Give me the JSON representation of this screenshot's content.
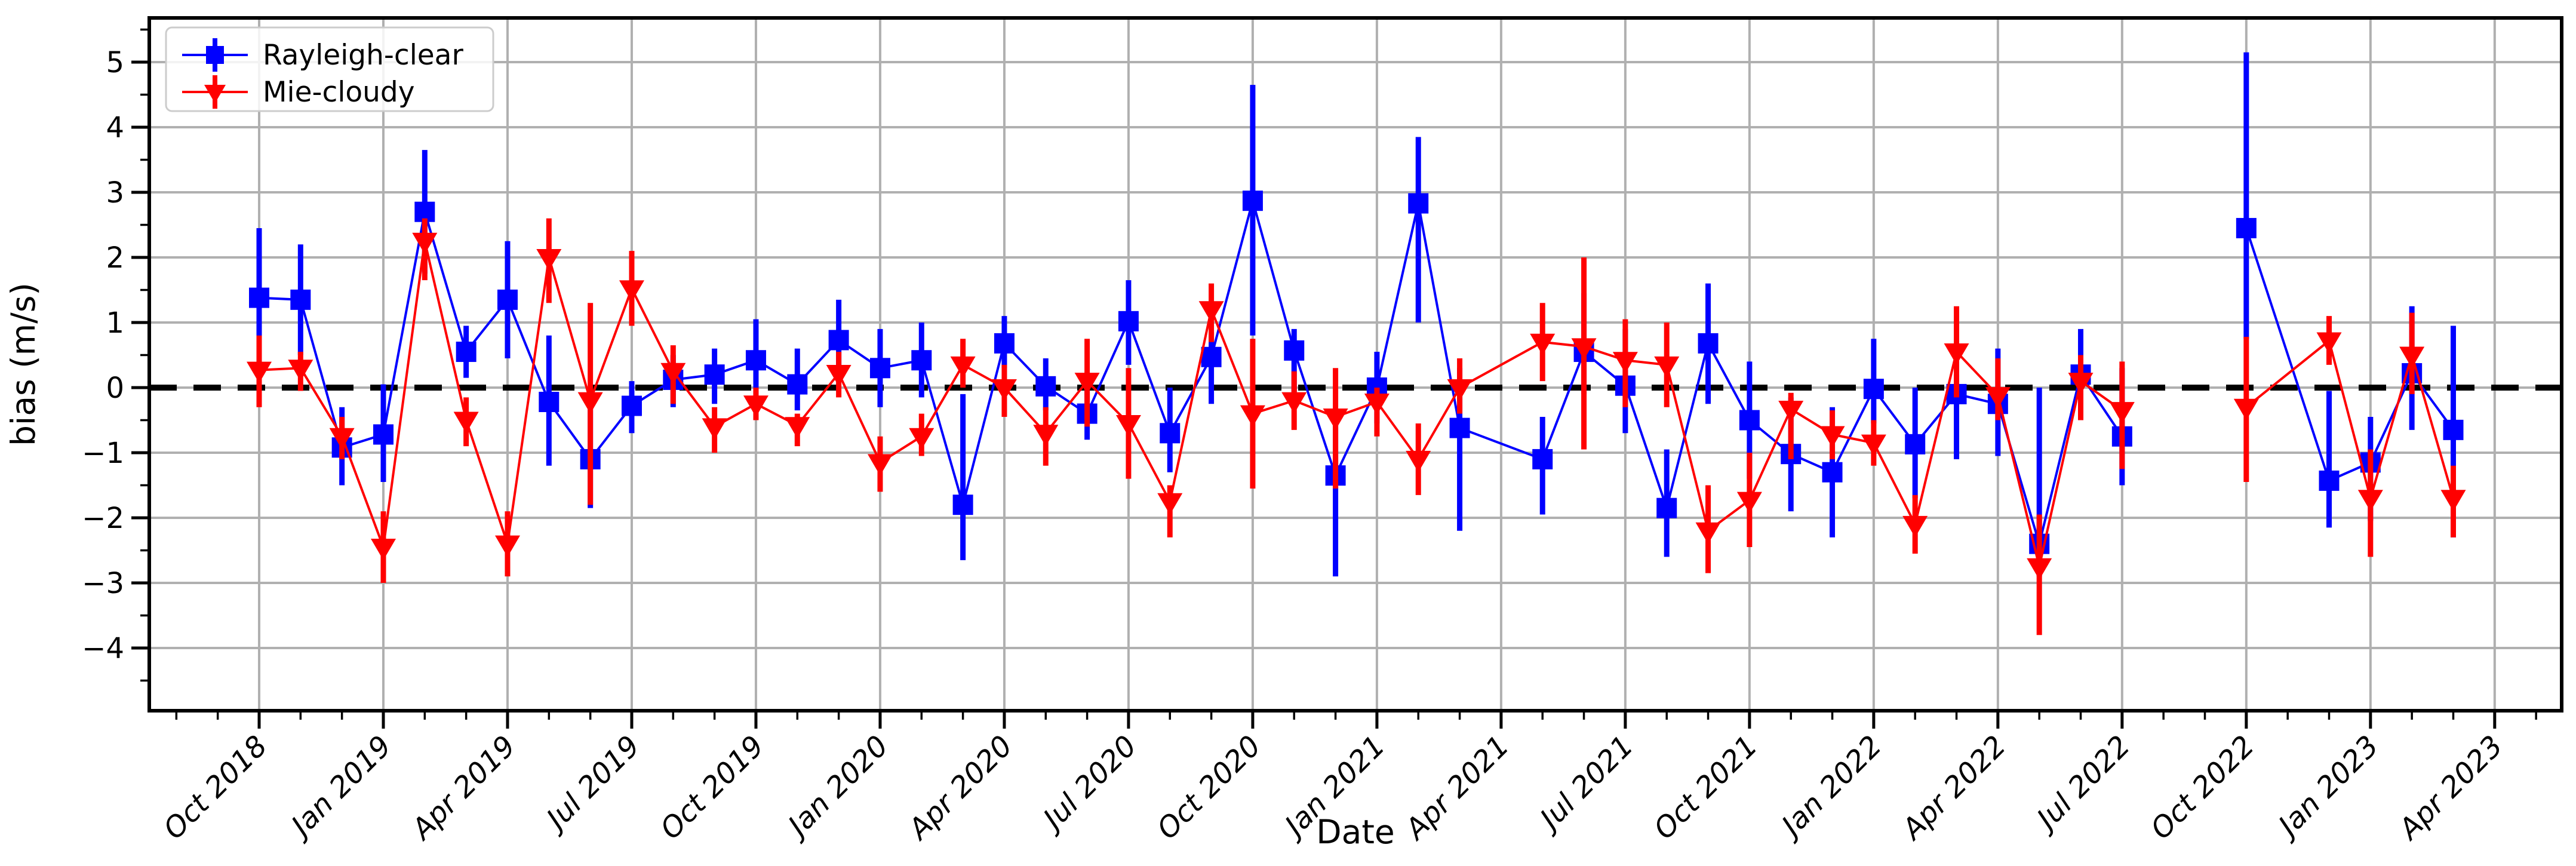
{
  "figure": {
    "background": "#ffffff"
  },
  "chart_data": {
    "type": "line",
    "subtype": "errorbar-timeseries",
    "title": "",
    "xlabel": "Date",
    "ylabel": "bias (m/s)",
    "grid": true,
    "zero_line": true,
    "legend_position": "upper left",
    "colors": {
      "rayleigh": "#0000ff",
      "mie": "#ff0000",
      "grid": "#b0b0b0",
      "zero_line": "#000000"
    },
    "x_month_zero": "Oct 2018",
    "x_tick_month_indices": [
      0,
      3,
      6,
      9,
      12,
      15,
      18,
      21,
      24,
      27,
      30,
      33,
      36,
      39,
      42,
      45,
      48,
      51,
      54
    ],
    "x_tick_labels": [
      "Oct 2018",
      "Jan 2019",
      "Apr 2019",
      "Jul 2019",
      "Oct 2019",
      "Jan 2020",
      "Apr 2020",
      "Jul 2020",
      "Oct 2020",
      "Jan 2021",
      "Apr 2021",
      "Jul 2021",
      "Oct 2021",
      "Jan 2022",
      "Apr 2022",
      "Jul 2022",
      "Oct 2022",
      "Jan 2023",
      "Apr 2023"
    ],
    "y_tick_values": [
      -4,
      -3,
      -2,
      -1,
      0,
      1,
      2,
      3,
      4,
      5
    ],
    "y_tick_labels": [
      "−4",
      "−3",
      "−2",
      "−1",
      "0",
      "1",
      "2",
      "3",
      "4",
      "5"
    ],
    "ylim": [
      -4.95,
      5.7
    ],
    "y_minor_step": 0.5,
    "series": [
      {
        "name": "Rayleigh-clear",
        "color": "#0000ff",
        "marker": "square",
        "points_format": [
          "month_index",
          "value",
          "err_low",
          "err_high"
        ],
        "points": [
          [
            0,
            1.38,
            0.3,
            2.45
          ],
          [
            1,
            1.35,
            0.5,
            2.2
          ],
          [
            2,
            -0.92,
            -1.5,
            -0.3
          ],
          [
            3,
            -0.72,
            -1.45,
            0.05
          ],
          [
            4,
            2.7,
            1.75,
            3.65
          ],
          [
            5,
            0.55,
            0.15,
            0.95
          ],
          [
            6,
            1.35,
            0.45,
            2.25
          ],
          [
            7,
            -0.22,
            -1.2,
            0.8
          ],
          [
            8,
            -1.1,
            -1.85,
            -0.2
          ],
          [
            9,
            -0.28,
            -0.7,
            0.1
          ],
          [
            10,
            0.12,
            -0.3,
            0.5
          ],
          [
            11,
            0.2,
            -0.25,
            0.6
          ],
          [
            12,
            0.42,
            -0.25,
            1.05
          ],
          [
            13,
            0.05,
            -0.35,
            0.6
          ],
          [
            14,
            0.73,
            0.1,
            1.35
          ],
          [
            15,
            0.3,
            -0.3,
            0.9
          ],
          [
            16,
            0.42,
            -0.15,
            1.0
          ],
          [
            17,
            -1.8,
            -2.65,
            -0.1
          ],
          [
            18,
            0.68,
            0.3,
            1.1
          ],
          [
            19,
            0.02,
            -0.35,
            0.45
          ],
          [
            20,
            -0.4,
            -0.8,
            0.0
          ],
          [
            21,
            1.02,
            0.35,
            1.65
          ],
          [
            22,
            -0.7,
            -1.3,
            0.0
          ],
          [
            23,
            0.47,
            -0.25,
            0.85
          ],
          [
            24,
            2.87,
            0.8,
            4.65
          ],
          [
            25,
            0.57,
            -0.2,
            0.9
          ],
          [
            26,
            -1.35,
            -2.9,
            -0.55
          ],
          [
            27,
            0.0,
            -0.55,
            0.55
          ],
          [
            28,
            2.83,
            1.0,
            3.85
          ],
          [
            29,
            -0.62,
            -2.2,
            0.3
          ],
          [
            31,
            -1.1,
            -1.95,
            -0.45
          ],
          [
            32,
            0.55,
            -0.1,
            1.45
          ],
          [
            33,
            0.03,
            -0.7,
            0.9
          ],
          [
            34,
            -1.85,
            -2.6,
            -0.95
          ],
          [
            35,
            0.68,
            -0.25,
            1.6
          ],
          [
            36,
            -0.5,
            -1.4,
            0.4
          ],
          [
            37,
            -1.02,
            -1.9,
            -0.15
          ],
          [
            38,
            -1.3,
            -2.3,
            -0.3
          ],
          [
            39,
            -0.02,
            -0.55,
            0.75
          ],
          [
            40,
            -0.87,
            -1.7,
            0.0
          ],
          [
            41,
            -0.1,
            -1.1,
            0.2
          ],
          [
            42,
            -0.25,
            -1.05,
            0.6
          ],
          [
            43,
            -2.4,
            -2.9,
            0.0
          ],
          [
            44,
            0.2,
            -0.5,
            0.9
          ],
          [
            45,
            -0.75,
            -1.5,
            0.3
          ],
          [
            48,
            2.45,
            0.75,
            5.15
          ],
          [
            50,
            -1.43,
            -2.15,
            -0.05
          ],
          [
            51,
            -1.15,
            -2.05,
            -0.45
          ],
          [
            52,
            0.22,
            -0.65,
            1.25
          ],
          [
            53,
            -0.65,
            -2.3,
            0.95
          ]
        ]
      },
      {
        "name": "Mie-cloudy",
        "color": "#ff0000",
        "marker": "triangle-down",
        "points_format": [
          "month_index",
          "value",
          "err_low",
          "err_high"
        ],
        "points": [
          [
            0,
            0.27,
            -0.3,
            0.8
          ],
          [
            1,
            0.3,
            -0.05,
            0.55
          ],
          [
            2,
            -0.75,
            -1.1,
            -0.45
          ],
          [
            3,
            -2.45,
            -3.0,
            -1.9
          ],
          [
            4,
            2.25,
            1.65,
            2.6
          ],
          [
            5,
            -0.5,
            -0.9,
            -0.15
          ],
          [
            6,
            -2.4,
            -2.9,
            -1.9
          ],
          [
            7,
            2.0,
            1.3,
            2.6
          ],
          [
            8,
            -0.2,
            -1.8,
            1.3
          ],
          [
            9,
            1.52,
            0.95,
            2.1
          ],
          [
            10,
            0.25,
            -0.25,
            0.65
          ],
          [
            11,
            -0.6,
            -1.0,
            -0.3
          ],
          [
            12,
            -0.25,
            -0.5,
            0.0
          ],
          [
            13,
            -0.58,
            -0.9,
            -0.4
          ],
          [
            14,
            0.22,
            -0.15,
            0.55
          ],
          [
            15,
            -1.15,
            -1.6,
            -0.75
          ],
          [
            16,
            -0.75,
            -1.05,
            -0.4
          ],
          [
            17,
            0.35,
            0.0,
            0.75
          ],
          [
            18,
            0.0,
            -0.45,
            0.35
          ],
          [
            19,
            -0.7,
            -1.2,
            -0.3
          ],
          [
            20,
            0.1,
            -0.6,
            0.75
          ],
          [
            21,
            -0.55,
            -1.4,
            0.3
          ],
          [
            22,
            -1.75,
            -2.3,
            -1.5
          ],
          [
            23,
            1.2,
            0.7,
            1.6
          ],
          [
            24,
            -0.4,
            -1.55,
            0.75
          ],
          [
            25,
            -0.2,
            -0.65,
            0.25
          ],
          [
            26,
            -0.45,
            -1.55,
            0.3
          ],
          [
            27,
            -0.22,
            -0.75,
            0.0
          ],
          [
            28,
            -1.1,
            -1.65,
            -0.55
          ],
          [
            29,
            0.0,
            -0.4,
            0.45
          ],
          [
            31,
            0.7,
            0.1,
            1.3
          ],
          [
            32,
            0.63,
            -0.95,
            2.0
          ],
          [
            33,
            0.42,
            -0.3,
            1.05
          ],
          [
            34,
            0.35,
            -0.3,
            1.0
          ],
          [
            35,
            -2.2,
            -2.85,
            -1.5
          ],
          [
            36,
            -1.73,
            -2.45,
            -1.0
          ],
          [
            37,
            -0.33,
            -1.1,
            -0.08
          ],
          [
            38,
            -0.72,
            -1.1,
            -0.35
          ],
          [
            39,
            -0.85,
            -1.2,
            -0.5
          ],
          [
            40,
            -2.1,
            -2.55,
            -1.65
          ],
          [
            41,
            0.55,
            -0.15,
            1.25
          ],
          [
            42,
            -0.12,
            -0.5,
            0.45
          ],
          [
            43,
            -2.75,
            -3.8,
            -1.95
          ],
          [
            44,
            0.1,
            -0.5,
            0.5
          ],
          [
            45,
            -0.35,
            -1.25,
            0.4
          ],
          [
            48,
            -0.3,
            -1.45,
            0.78
          ],
          [
            50,
            0.72,
            0.35,
            1.1
          ],
          [
            51,
            -1.7,
            -2.6,
            -0.95
          ],
          [
            52,
            0.5,
            -0.1,
            1.15
          ],
          [
            53,
            -1.7,
            -2.3,
            -1.2
          ]
        ]
      }
    ]
  }
}
